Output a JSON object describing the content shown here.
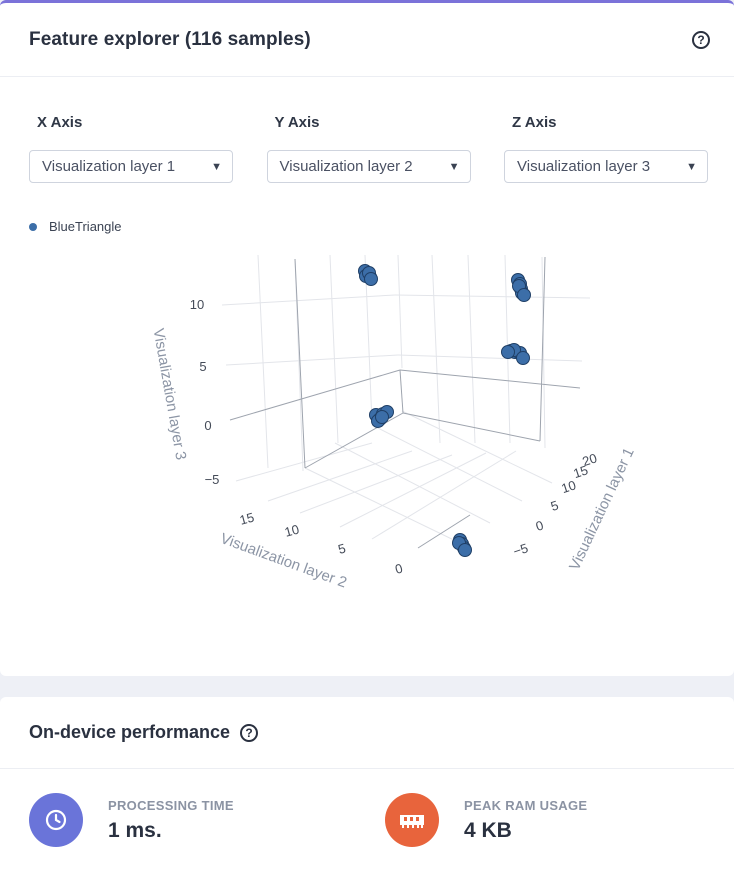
{
  "explorer": {
    "title": "Feature explorer (116 samples)",
    "help_icon": "question-circle-icon",
    "axes": [
      {
        "label": "X Axis",
        "selected": "Visualization layer 1"
      },
      {
        "label": "Y Axis",
        "selected": "Visualization layer 2"
      },
      {
        "label": "Z Axis",
        "selected": "Visualization layer 3"
      }
    ],
    "legend": {
      "label": "BlueTriangle",
      "color": "#3c6ea8"
    }
  },
  "chart_data": {
    "type": "scatter",
    "dimensions": 3,
    "series": [
      {
        "name": "BlueTriangle",
        "color": "#3c6ea8"
      }
    ],
    "axis_titles": {
      "x": "Visualization layer 1",
      "y": "Visualization layer 2",
      "z": "Visualization layer 3"
    },
    "x_ticks": [
      "−5",
      "0",
      "5",
      "10",
      "15",
      "20"
    ],
    "y_ticks": [
      "0",
      "5",
      "10",
      "15"
    ],
    "z_ticks": [
      "−5",
      "0",
      "5",
      "10"
    ],
    "clusters_approx": [
      {
        "x": 20,
        "y": 17,
        "z": 12
      },
      {
        "x": 20,
        "y": 0,
        "z": 12
      },
      {
        "x": 20,
        "y": 0,
        "z": 5
      },
      {
        "x": 0,
        "y": 16,
        "z": 0
      },
      {
        "x": -6,
        "y": 0,
        "z": -5
      }
    ],
    "grid": true
  },
  "performance": {
    "title": "On-device performance",
    "help_icon": "question-circle-icon",
    "metrics": [
      {
        "label": "PROCESSING TIME",
        "value": "1 ms.",
        "icon": "clock-icon",
        "color": "#6a74d9"
      },
      {
        "label": "PEAK RAM USAGE",
        "value": "4 KB",
        "icon": "memory-chip-icon",
        "color": "#e8643c"
      }
    ]
  }
}
